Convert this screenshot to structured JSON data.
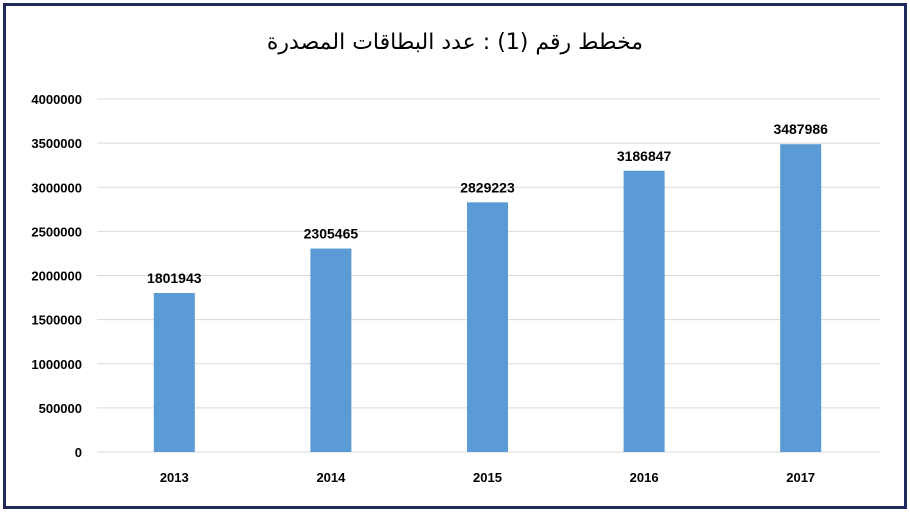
{
  "chart_data": {
    "type": "bar",
    "title": "مخطط رقم (1) : عدد البطاقات المصدرة",
    "categories": [
      "2013",
      "2014",
      "2015",
      "2016",
      "2017"
    ],
    "values": [
      1801943,
      2305465,
      2829223,
      3186847,
      3487986
    ],
    "data_labels": [
      "1801943",
      "2305465",
      "2829223",
      "3186847",
      "3487986"
    ],
    "ylim": [
      0,
      4000000
    ],
    "yticks": [
      "0",
      "500000",
      "1000000",
      "1500000",
      "2000000",
      "2500000",
      "3000000",
      "3500000",
      "4000000"
    ],
    "grid": true,
    "legend": "none",
    "bar_color": "#5b9bd5",
    "grid_color": "#d9d9d9",
    "border_color": "#1f2a5a"
  }
}
